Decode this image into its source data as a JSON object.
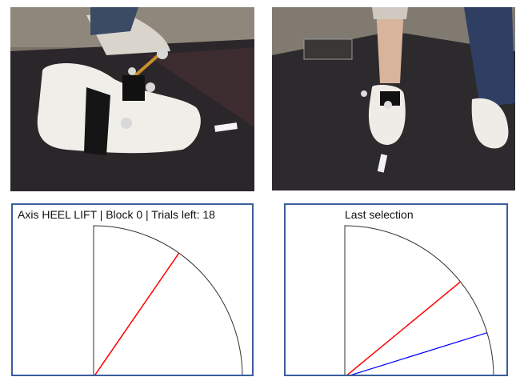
{
  "photos": [
    {
      "subject": "side view of foot with heel marker rig on mat"
    },
    {
      "subject": "front view of participant standing with foot marker rig on mat"
    }
  ],
  "panels": [
    {
      "title": "Axis HEEL LIFT | Block 0 | Trials left: 18",
      "angles_deg": {
        "target": 55
      },
      "colors": {
        "target": "#ff0000",
        "arc": "#333333"
      }
    },
    {
      "title": "Last selection",
      "angles_deg": {
        "target": 39,
        "selection": 17
      },
      "colors": {
        "target": "#ff0000",
        "selection": "#0000ff",
        "arc": "#333333"
      }
    }
  ]
}
